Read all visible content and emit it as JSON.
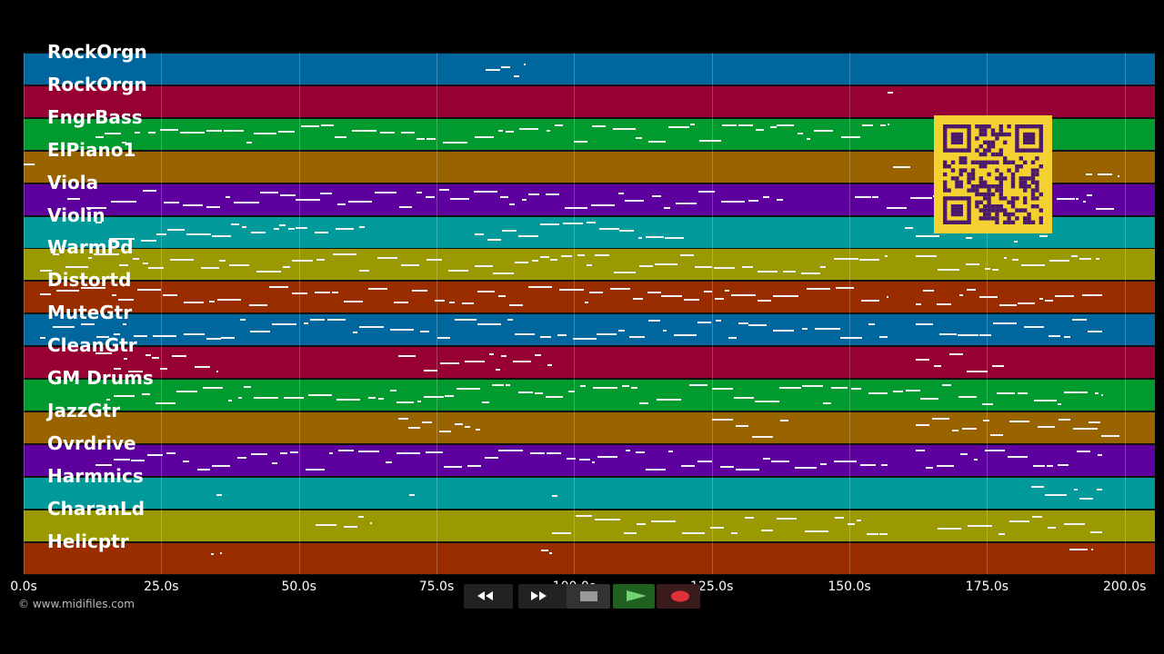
{
  "tracks": [
    {
      "name": "RockOrgn",
      "color": "#00679e"
    },
    {
      "name": "RockOrgn",
      "color": "#960035"
    },
    {
      "name": "FngrBass",
      "color": "#009a2f"
    },
    {
      "name": "ElPiano1",
      "color": "#996300"
    },
    {
      "name": "Viola",
      "color": "#5e009e"
    },
    {
      "name": "Violin",
      "color": "#009a9a"
    },
    {
      "name": "WarmPd",
      "color": "#9a9a00"
    },
    {
      "name": "Distortd",
      "color": "#992d00"
    },
    {
      "name": "MuteGtr",
      "color": "#00679e"
    },
    {
      "name": "CleanGtr",
      "color": "#960035"
    },
    {
      "name": "GM Drums",
      "color": "#009a2f"
    },
    {
      "name": "JazzGtr",
      "color": "#996300"
    },
    {
      "name": "Ovrdrive",
      "color": "#5e009e"
    },
    {
      "name": "Harmnics",
      "color": "#009a9a"
    },
    {
      "name": "CharanLd",
      "color": "#9a9a00"
    },
    {
      "name": "Helicptr",
      "color": "#992d00"
    }
  ],
  "timeline": {
    "ticks": [
      "0.0s",
      "25.0s",
      "50.0s",
      "75.0s",
      "100.0s",
      "125.0s",
      "150.0s",
      "175.0s",
      "200.0s"
    ],
    "tick_seconds": [
      0,
      25,
      50,
      75,
      100,
      125,
      150,
      175,
      200
    ],
    "max_seconds": 205.5
  },
  "footer": {
    "copyright": "© www.midifiles.com"
  },
  "transport": {
    "buttons": [
      {
        "name": "rewind-button",
        "icon": "rewind-icon",
        "color": "#222"
      },
      {
        "name": "fast-forward-button",
        "icon": "fast-forward-icon",
        "color": "#222"
      },
      {
        "name": "stop-button",
        "icon": "stop-icon",
        "color": "#333"
      },
      {
        "name": "play-button",
        "icon": "play-icon",
        "color": "#1f5f1f"
      },
      {
        "name": "record-button",
        "icon": "record-icon",
        "color": "#3a1c1c"
      }
    ]
  },
  "qr_code": {
    "icon": "qr-code-icon",
    "color": "#f3d130"
  }
}
